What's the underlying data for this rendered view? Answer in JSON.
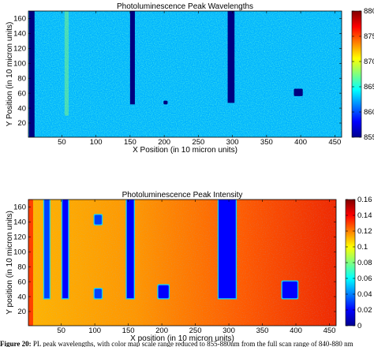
{
  "chart_data": [
    {
      "type": "heatmap",
      "title": "Photoluminescence Peak Wavelengths",
      "xlabel": "X Position (in 10 micron units)",
      "ylabel": "Y Position (in 10 micron units)",
      "xlim": [
        1,
        460
      ],
      "ylim": [
        1,
        170
      ],
      "xticks": [
        50,
        100,
        150,
        200,
        250,
        300,
        350,
        400,
        450
      ],
      "yticks": [
        20,
        40,
        60,
        80,
        100,
        120,
        140,
        160
      ],
      "colorbar": {
        "min": 855,
        "max": 880,
        "ticks": [
          855,
          860,
          865,
          870,
          875,
          880
        ]
      },
      "background_value": 862.5,
      "features": [
        {
          "kind": "band",
          "x": [
            2,
            10
          ],
          "y": [
            1,
            170
          ],
          "value": 855
        },
        {
          "kind": "band",
          "x": [
            150,
            157
          ],
          "y": [
            45,
            170
          ],
          "value": 855
        },
        {
          "kind": "band",
          "x": [
            293,
            303
          ],
          "y": [
            47,
            170
          ],
          "value": 855
        },
        {
          "kind": "square",
          "x": [
            390,
            403
          ],
          "y": [
            56,
            66
          ],
          "value": 855
        },
        {
          "kind": "dot",
          "x": [
            199,
            205
          ],
          "y": [
            45,
            50
          ],
          "value": 855
        },
        {
          "kind": "streak",
          "x": [
            54,
            60
          ],
          "y": [
            30,
            170
          ],
          "value": 868
        }
      ]
    },
    {
      "type": "heatmap",
      "title": "Photoluminescence Peak Intensity",
      "xlabel": "X position (in 10 micron units)",
      "ylabel": "Y position (in 10 micron units)",
      "xlim": [
        1,
        460
      ],
      "ylim": [
        1,
        170
      ],
      "xticks": [
        50,
        100,
        150,
        200,
        250,
        300,
        350,
        400,
        450
      ],
      "yticks": [
        20,
        40,
        60,
        80,
        100,
        120,
        140,
        160
      ],
      "colorbar": {
        "min": 0,
        "max": 0.16,
        "ticks": [
          0,
          0.02,
          0.04,
          0.06,
          0.08,
          0.1,
          0.12,
          0.14,
          0.16
        ]
      },
      "gradient": {
        "left_value": 0.11,
        "right_value": 0.148
      },
      "features": [
        {
          "kind": "edge",
          "x": [
            1,
            8
          ],
          "y": [
            1,
            170
          ],
          "value": 0.13
        },
        {
          "kind": "band",
          "x": [
            25,
            32
          ],
          "y": [
            38,
            170
          ],
          "value": 0.03
        },
        {
          "kind": "band",
          "x": [
            52,
            60
          ],
          "y": [
            38,
            170
          ],
          "value": 0.02
        },
        {
          "kind": "band",
          "x": [
            148,
            158
          ],
          "y": [
            38,
            170
          ],
          "value": 0.02
        },
        {
          "kind": "band",
          "x": [
            285,
            310
          ],
          "y": [
            38,
            170
          ],
          "value": 0.02
        },
        {
          "kind": "square",
          "x": [
            195,
            210
          ],
          "y": [
            38,
            55
          ],
          "value": 0.02
        },
        {
          "kind": "square",
          "x": [
            380,
            402
          ],
          "y": [
            38,
            60
          ],
          "value": 0.02
        },
        {
          "kind": "dot",
          "x": [
            100,
            110
          ],
          "y": [
            137,
            149
          ],
          "value": 0.03
        },
        {
          "kind": "dot",
          "x": [
            100,
            110
          ],
          "y": [
            38,
            50
          ],
          "value": 0.03
        }
      ]
    }
  ],
  "caption": {
    "label": "Figure 20:",
    "text": " PL peak wavelengths, with color map scale range reduced to 855-880nm from the full scan range of 840-880 nm"
  }
}
